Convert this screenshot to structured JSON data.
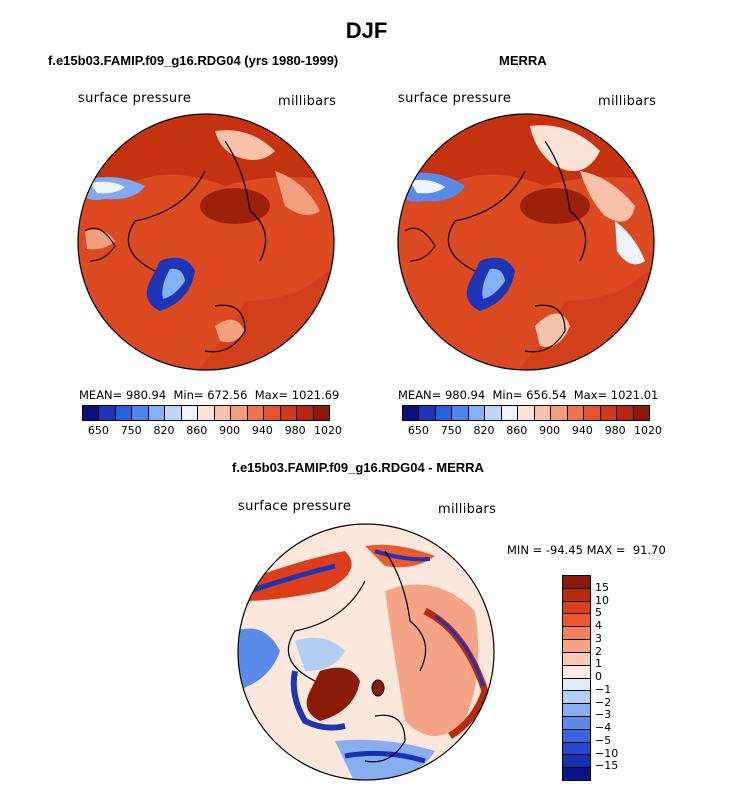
{
  "figure_title": "DJF",
  "panels": {
    "left": {
      "title": "f.e15b03.FAMIP.f09_g16.RDG04 (yrs 1980-1999)",
      "left_label": "surface pressure",
      "right_label": "millibars",
      "stats": "MEAN= 980.94  Min= 672.56  Max= 1021.69"
    },
    "right": {
      "title": "MERRA",
      "left_label": "surface pressure",
      "right_label": "millibars",
      "stats": "MEAN= 980.94  Min= 656.54  Max= 1021.01"
    },
    "diff": {
      "title": "f.e15b03.FAMIP.f09_g16.RDG04 - MERRA",
      "left_label": "surface pressure",
      "right_label": "millibars",
      "stats": "MIN = -94.45 MAX =  91.70"
    }
  },
  "colorbar_h": {
    "colors": [
      "#0a0f7a",
      "#1c35b5",
      "#2c5ee0",
      "#4f84ef",
      "#86b0f2",
      "#bdd6f7",
      "#eef3fb",
      "#fbe3d6",
      "#f7c2a7",
      "#f39e7c",
      "#ec7452",
      "#e2522c",
      "#cf3818",
      "#b22810",
      "#8a1a0a"
    ],
    "tick_labels": [
      "650",
      "750",
      "820",
      "860",
      "900",
      "940",
      "980",
      "1020"
    ]
  },
  "colorbar_v": {
    "colors": [
      "#8a1a0a",
      "#b82a10",
      "#dd3d18",
      "#ee5a2f",
      "#f2805a",
      "#f5a487",
      "#f9c9b4",
      "#fcebe1",
      "#e0ecfa",
      "#b3cdf3",
      "#86aef0",
      "#5a8aea",
      "#3866e0",
      "#2349d1",
      "#1430b3",
      "#0a158a"
    ],
    "tick_labels": [
      "15",
      "10",
      "5",
      "4",
      "3",
      "2",
      "1",
      "0",
      "−1",
      "−2",
      "−3",
      "−4",
      "−5",
      "−10",
      "−15"
    ]
  }
}
